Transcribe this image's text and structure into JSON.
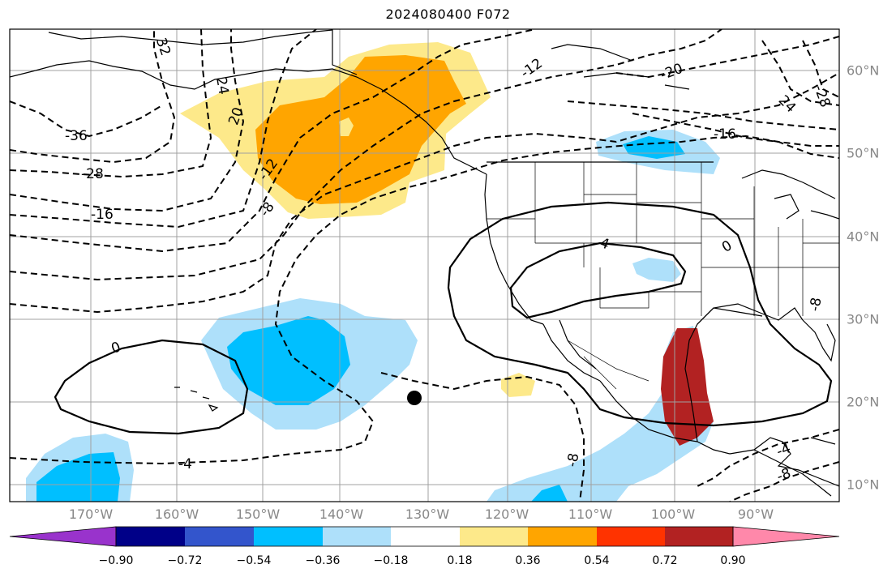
{
  "title": "2024080400 F072",
  "longitude_labels": [
    "170°W",
    "160°W",
    "150°W",
    "140°W",
    "130°W",
    "120°W",
    "110°W",
    "100°W",
    "90°W"
  ],
  "latitude_labels": [
    "60°N",
    "50°N",
    "40°N",
    "30°N",
    "20°N",
    "10°N"
  ],
  "contour_labels": [
    "32",
    "24",
    "20",
    "-36",
    "-28",
    "-16",
    "-20",
    "-12",
    "-8",
    "-4",
    "0",
    "-4",
    "-12",
    "-20",
    "24",
    "-28",
    "-16",
    "0",
    "4",
    "-8",
    "-8",
    "-4",
    "0",
    "-4",
    "-8"
  ],
  "colorbar": {
    "tick_labels": [
      "−0.90",
      "−0.72",
      "−0.54",
      "−0.36",
      "−0.18",
      "0.18",
      "0.36",
      "0.54",
      "0.72",
      "0.90"
    ],
    "colors": [
      "#9933cc",
      "#000088",
      "#3355cc",
      "#00bfff",
      "#aee0fa",
      "#ffffff",
      "#fde98a",
      "#ffa500",
      "#ff3300",
      "#b22222",
      "#ff88aa"
    ]
  },
  "anomaly_colors": {
    "neg_weak": "#aee0fa",
    "neg_mod": "#00bfff",
    "pos_weak": "#fde98a",
    "pos_mod": "#ffa500"
  }
}
